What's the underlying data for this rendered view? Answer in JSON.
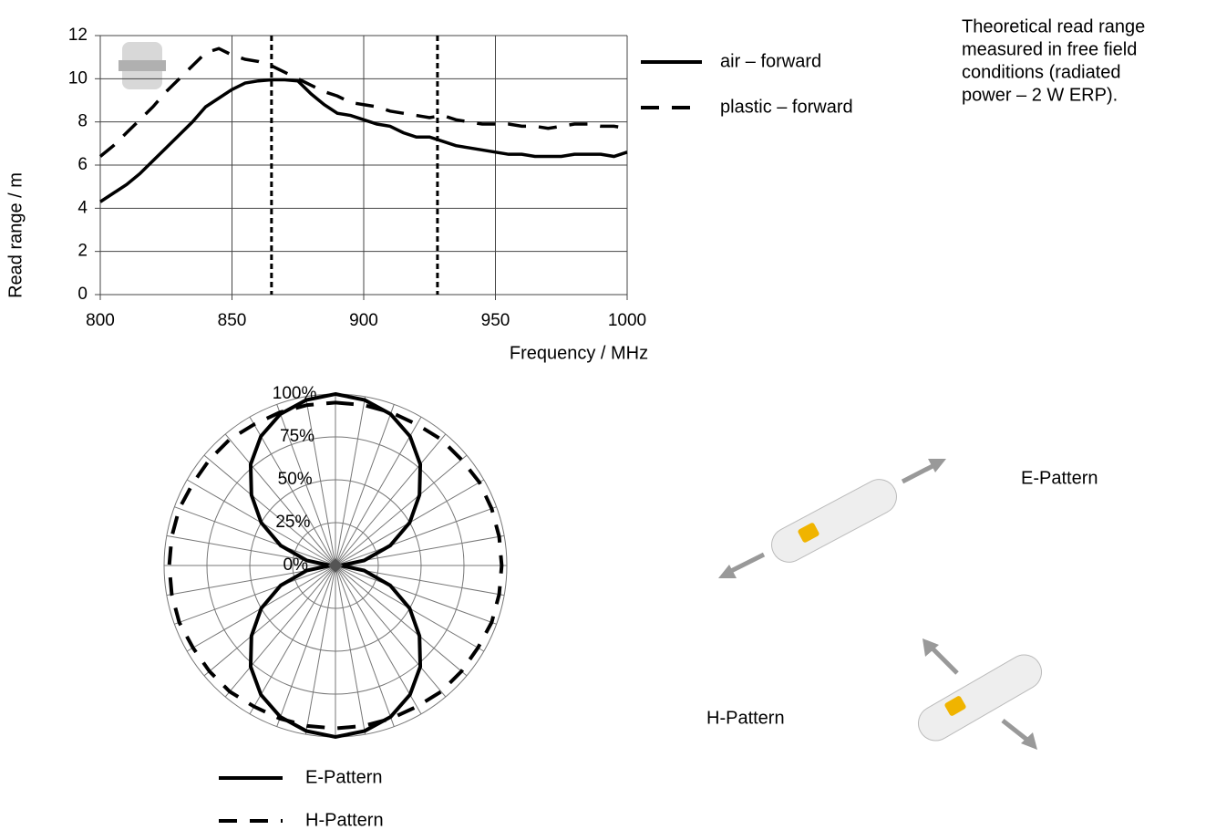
{
  "chart_data": [
    {
      "type": "line",
      "xlabel": "Frequency / MHz",
      "ylabel": "Read range / m",
      "x": [
        800,
        805,
        810,
        815,
        820,
        825,
        830,
        835,
        840,
        845,
        850,
        855,
        860,
        865,
        870,
        875,
        880,
        885,
        890,
        895,
        900,
        905,
        910,
        915,
        920,
        925,
        930,
        935,
        940,
        945,
        950,
        955,
        960,
        965,
        970,
        975,
        980,
        985,
        990,
        995,
        1000
      ],
      "series": [
        {
          "name": "air – forward",
          "color": "#000000",
          "dash": false,
          "values": [
            4.3,
            4.7,
            5.1,
            5.6,
            6.2,
            6.8,
            7.4,
            8.0,
            8.7,
            9.1,
            9.5,
            9.8,
            9.9,
            9.95,
            9.95,
            9.9,
            9.3,
            8.8,
            8.4,
            8.3,
            8.1,
            7.9,
            7.8,
            7.5,
            7.3,
            7.3,
            7.1,
            6.9,
            6.8,
            6.7,
            6.6,
            6.5,
            6.5,
            6.4,
            6.4,
            6.4,
            6.5,
            6.5,
            6.5,
            6.4,
            6.6
          ]
        },
        {
          "name": "plastic – forward",
          "color": "#000000",
          "dash": true,
          "values": [
            6.4,
            6.9,
            7.5,
            8.1,
            8.7,
            9.4,
            10.0,
            10.6,
            11.2,
            11.4,
            11.1,
            10.9,
            10.8,
            10.6,
            10.3,
            10.0,
            9.7,
            9.4,
            9.2,
            8.9,
            8.8,
            8.7,
            8.5,
            8.4,
            8.3,
            8.2,
            8.3,
            8.1,
            8.0,
            7.9,
            7.9,
            7.9,
            7.8,
            7.8,
            7.7,
            7.8,
            7.9,
            7.9,
            7.8,
            7.8,
            7.7
          ]
        }
      ],
      "vlines": [
        865,
        928
      ],
      "xlim": [
        800,
        1000
      ],
      "xticks": [
        800,
        850,
        900,
        950,
        1000
      ],
      "ylim": [
        0,
        12
      ],
      "yticks": [
        0,
        2,
        4,
        6,
        8,
        10,
        12
      ],
      "grid": true
    },
    {
      "type": "polar",
      "theta": [
        0,
        10,
        20,
        30,
        40,
        50,
        60,
        70,
        80,
        90,
        100,
        110,
        120,
        130,
        140,
        150,
        160,
        170,
        180,
        190,
        200,
        210,
        220,
        230,
        240,
        250,
        260,
        270,
        280,
        290,
        300,
        310,
        320,
        330,
        340,
        350
      ],
      "rlim": [
        0,
        100
      ],
      "rticks": [
        {
          "value": 0,
          "label": "0%"
        },
        {
          "value": 25,
          "label": "25%"
        },
        {
          "value": 50,
          "label": "50%"
        },
        {
          "value": 75,
          "label": "75%"
        },
        {
          "value": 100,
          "label": "100%"
        }
      ],
      "series": [
        {
          "name": "E-Pattern",
          "color": "#000000",
          "dash": false,
          "values": [
            100,
            98,
            94,
            87,
            77,
            64,
            50,
            34,
            17,
            3,
            17,
            34,
            50,
            64,
            77,
            87,
            94,
            98,
            100,
            98,
            94,
            87,
            77,
            64,
            50,
            34,
            17,
            3,
            17,
            34,
            50,
            64,
            77,
            87,
            94,
            98
          ]
        },
        {
          "name": "H-Pattern",
          "color": "#000000",
          "dash": true,
          "values": [
            95,
            95,
            95,
            95,
            96,
            96,
            97,
            97,
            97,
            97,
            97,
            97,
            96,
            96,
            96,
            95,
            95,
            95,
            95,
            95,
            95,
            95,
            96,
            96,
            96,
            97,
            97,
            97,
            97,
            97,
            96,
            96,
            96,
            95,
            95,
            95
          ]
        }
      ]
    }
  ],
  "note": [
    "Theoretical read range",
    "measured in free field",
    "conditions (radiated",
    "power – 2 W ERP)."
  ],
  "illustration_labels": [
    "E-Pattern",
    "H-Pattern"
  ]
}
